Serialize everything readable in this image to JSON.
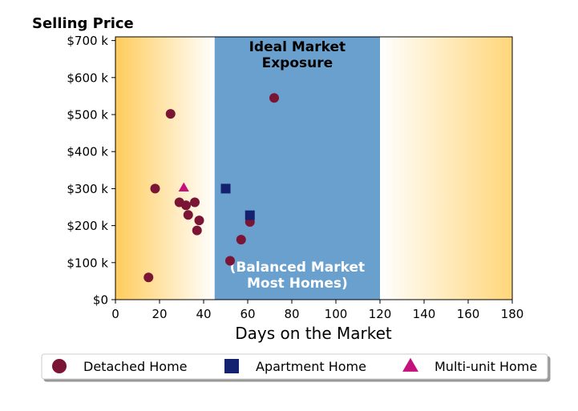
{
  "chart_data": {
    "type": "scatter",
    "title": "",
    "ylabel": "Selling Price",
    "xlabel": "Days on the Market",
    "xlim": [
      0,
      180
    ],
    "ylim": [
      0,
      710000
    ],
    "x_ticks": [
      0,
      20,
      40,
      60,
      80,
      100,
      120,
      140,
      160,
      180
    ],
    "y_ticks": [
      0,
      100000,
      200000,
      300000,
      400000,
      500000,
      600000,
      700000
    ],
    "y_tick_labels": [
      "$0",
      "$100 k",
      "$200 k",
      "$300 k",
      "$400 k",
      "$500 k",
      "$600 k",
      "$700 k"
    ],
    "grid": false,
    "background_zones": [
      {
        "range": [
          0,
          45
        ],
        "style": "gradient",
        "from_color": "#FFCC5C",
        "to_color": "#FFFFFF",
        "direction": "left-to-right"
      },
      {
        "range": [
          45,
          120
        ],
        "style": "solid",
        "color": "#6AA0CD",
        "label_top_lines": [
          "Ideal Market",
          "Exposure"
        ],
        "label_bottom_lines": [
          "(Balanced Market",
          "Most Homes)"
        ]
      },
      {
        "range": [
          120,
          180
        ],
        "style": "gradient",
        "from_color": "#FFFFFF",
        "to_color": "#FFD67A",
        "direction": "left-to-right"
      }
    ],
    "series": [
      {
        "name": "Detached Home",
        "marker": "circle",
        "color": "#7B1535",
        "points": [
          {
            "x": 15,
            "y": 60000
          },
          {
            "x": 18,
            "y": 300000
          },
          {
            "x": 25,
            "y": 502000
          },
          {
            "x": 29,
            "y": 263000
          },
          {
            "x": 32,
            "y": 255000
          },
          {
            "x": 33,
            "y": 229000
          },
          {
            "x": 36,
            "y": 263000
          },
          {
            "x": 37,
            "y": 187000
          },
          {
            "x": 38,
            "y": 214000
          },
          {
            "x": 52,
            "y": 105000
          },
          {
            "x": 57,
            "y": 162000
          },
          {
            "x": 61,
            "y": 210000
          },
          {
            "x": 72,
            "y": 545000
          }
        ]
      },
      {
        "name": "Apartment Home",
        "marker": "square",
        "color": "#142170",
        "points": [
          {
            "x": 50,
            "y": 300000
          },
          {
            "x": 61,
            "y": 228000
          }
        ]
      },
      {
        "name": "Multi-unit Home",
        "marker": "triangle",
        "color": "#C4127A",
        "points": [
          {
            "x": 31,
            "y": 302000
          }
        ]
      }
    ],
    "legend": {
      "placement": "bottom",
      "columns": 3
    }
  }
}
